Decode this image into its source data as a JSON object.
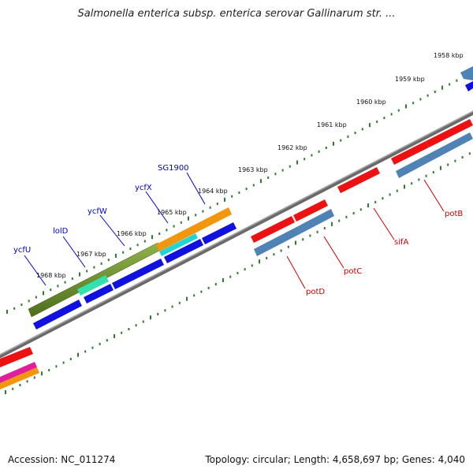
{
  "title": "Salmonella enterica subsp. enterica serovar Gallinarum str. ...",
  "footer": {
    "accession": "Accession: NC_011274",
    "topology": "Topology: circular; Length: 4,658,697 bp; Genes: 4,040"
  },
  "kbp_labels": [
    "1958 kbp",
    "1959 kbp",
    "1960 kbp",
    "1961 kbp",
    "1962 kbp",
    "1963 kbp",
    "1964 kbp",
    "1965 kbp",
    "1966 kbp",
    "1967 kbp",
    "1968 kbp"
  ],
  "genes_top": [
    "SG1900",
    "ycfX",
    "ycfW",
    "lolD",
    "ycfU"
  ],
  "genes_bottom": [
    "potB",
    "sifA",
    "potC",
    "potD"
  ],
  "colors": {
    "tick": "#2f7a2f",
    "backbone": "#808080",
    "red": "#ee1111",
    "steel": "#4f82b5",
    "blue": "#1010e0",
    "olive": "#6b8f2a",
    "mint": "#33e0b0",
    "orange": "#f2960d",
    "cyan": "#22d4d4",
    "magenta": "#e0209a",
    "top_label": "#0000cc",
    "bottom_label": "#cc0000"
  }
}
